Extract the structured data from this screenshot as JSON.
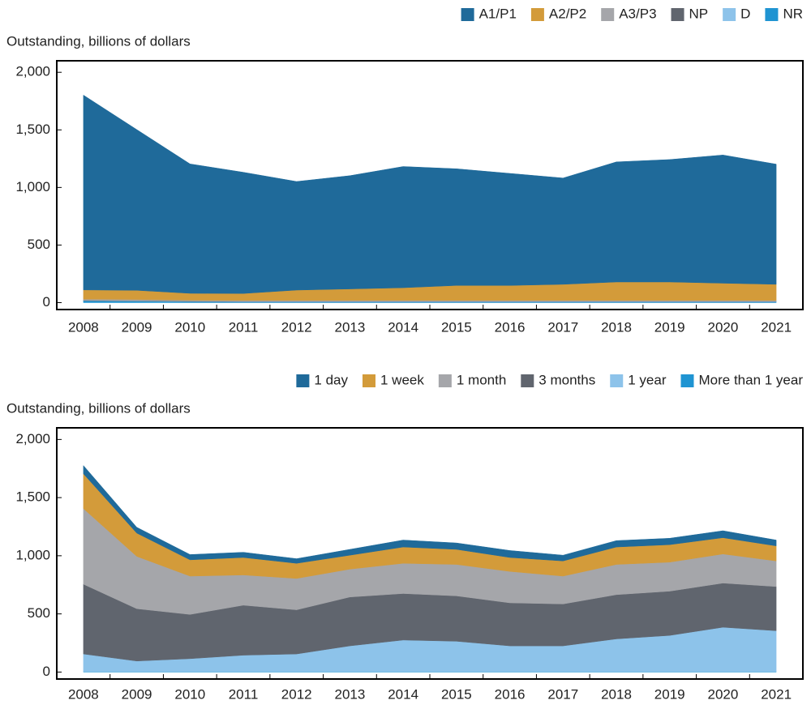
{
  "chart_data": [
    {
      "type": "stacked-area",
      "y_label": "Outstanding, billions of dollars",
      "legend": "top-right",
      "categories": [
        "2008",
        "2009",
        "2010",
        "2011",
        "2012",
        "2013",
        "2014",
        "2015",
        "2016",
        "2017",
        "2018",
        "2019",
        "2020",
        "2021"
      ],
      "series": [
        {
          "name": "A1/P1",
          "color": "#1f6a9a",
          "values": [
            1692,
            1396,
            1123,
            1053,
            943,
            983,
            1053,
            1013,
            973,
            923,
            1043,
            1063,
            1113,
            1043
          ]
        },
        {
          "name": "A2/P2",
          "color": "#d39b3a",
          "values": [
            80,
            80,
            60,
            60,
            90,
            100,
            110,
            130,
            130,
            140,
            160,
            160,
            150,
            140
          ]
        },
        {
          "name": "A3/P3",
          "color": "#a5a6aa",
          "values": [
            10,
            10,
            8,
            8,
            8,
            8,
            8,
            8,
            8,
            8,
            8,
            8,
            8,
            8
          ]
        },
        {
          "name": "NP",
          "color": "#60656e",
          "values": [
            3,
            3,
            3,
            3,
            3,
            3,
            3,
            3,
            3,
            3,
            3,
            3,
            3,
            3
          ]
        },
        {
          "name": "D",
          "color": "#8dc3ea",
          "values": [
            2,
            2,
            2,
            2,
            2,
            2,
            2,
            2,
            2,
            2,
            2,
            2,
            2,
            2
          ]
        },
        {
          "name": "NR",
          "color": "#1f94d2",
          "values": [
            15,
            12,
            8,
            6,
            6,
            6,
            6,
            6,
            6,
            6,
            6,
            6,
            6,
            6
          ]
        }
      ],
      "ylim": [
        -60,
        2100
      ],
      "yticks": [
        0,
        500,
        {
          "value": 1000,
          "label": "1,000"
        },
        {
          "value": 1500,
          "label": "1,500"
        },
        {
          "value": 2000,
          "label": "2,000"
        }
      ]
    },
    {
      "type": "stacked-area",
      "y_label": "Outstanding, billions of dollars",
      "legend": "top-right",
      "categories": [
        "2008",
        "2009",
        "2010",
        "2011",
        "2012",
        "2013",
        "2014",
        "2015",
        "2016",
        "2017",
        "2018",
        "2019",
        "2020",
        "2021"
      ],
      "series": [
        {
          "name": "1 day",
          "color": "#1f6a9a",
          "values": [
            70,
            50,
            45,
            45,
            40,
            50,
            60,
            55,
            60,
            50,
            55,
            55,
            60,
            50
          ]
        },
        {
          "name": "1 week",
          "color": "#d39b3a",
          "values": [
            300,
            200,
            140,
            150,
            130,
            120,
            140,
            130,
            120,
            130,
            150,
            150,
            140,
            130
          ]
        },
        {
          "name": "1 month",
          "color": "#a5a6aa",
          "values": [
            650,
            450,
            330,
            260,
            270,
            240,
            260,
            270,
            270,
            240,
            260,
            250,
            250,
            220
          ]
        },
        {
          "name": "3 months",
          "color": "#60656e",
          "values": [
            600,
            450,
            380,
            430,
            380,
            420,
            400,
            390,
            370,
            360,
            380,
            380,
            380,
            380
          ]
        },
        {
          "name": "1 year",
          "color": "#8dc3ea",
          "values": [
            150,
            90,
            110,
            140,
            150,
            220,
            270,
            260,
            220,
            220,
            280,
            310,
            380,
            350
          ]
        },
        {
          "name": "More than 1 year",
          "color": "#1f94d2",
          "values": [
            5,
            5,
            5,
            5,
            5,
            5,
            5,
            5,
            5,
            5,
            5,
            5,
            5,
            5
          ]
        }
      ],
      "ylim": [
        -60,
        2100
      ],
      "yticks": [
        0,
        500,
        {
          "value": 1000,
          "label": "1,000"
        },
        {
          "value": 1500,
          "label": "1,500"
        },
        {
          "value": 2000,
          "label": "2,000"
        }
      ]
    }
  ]
}
